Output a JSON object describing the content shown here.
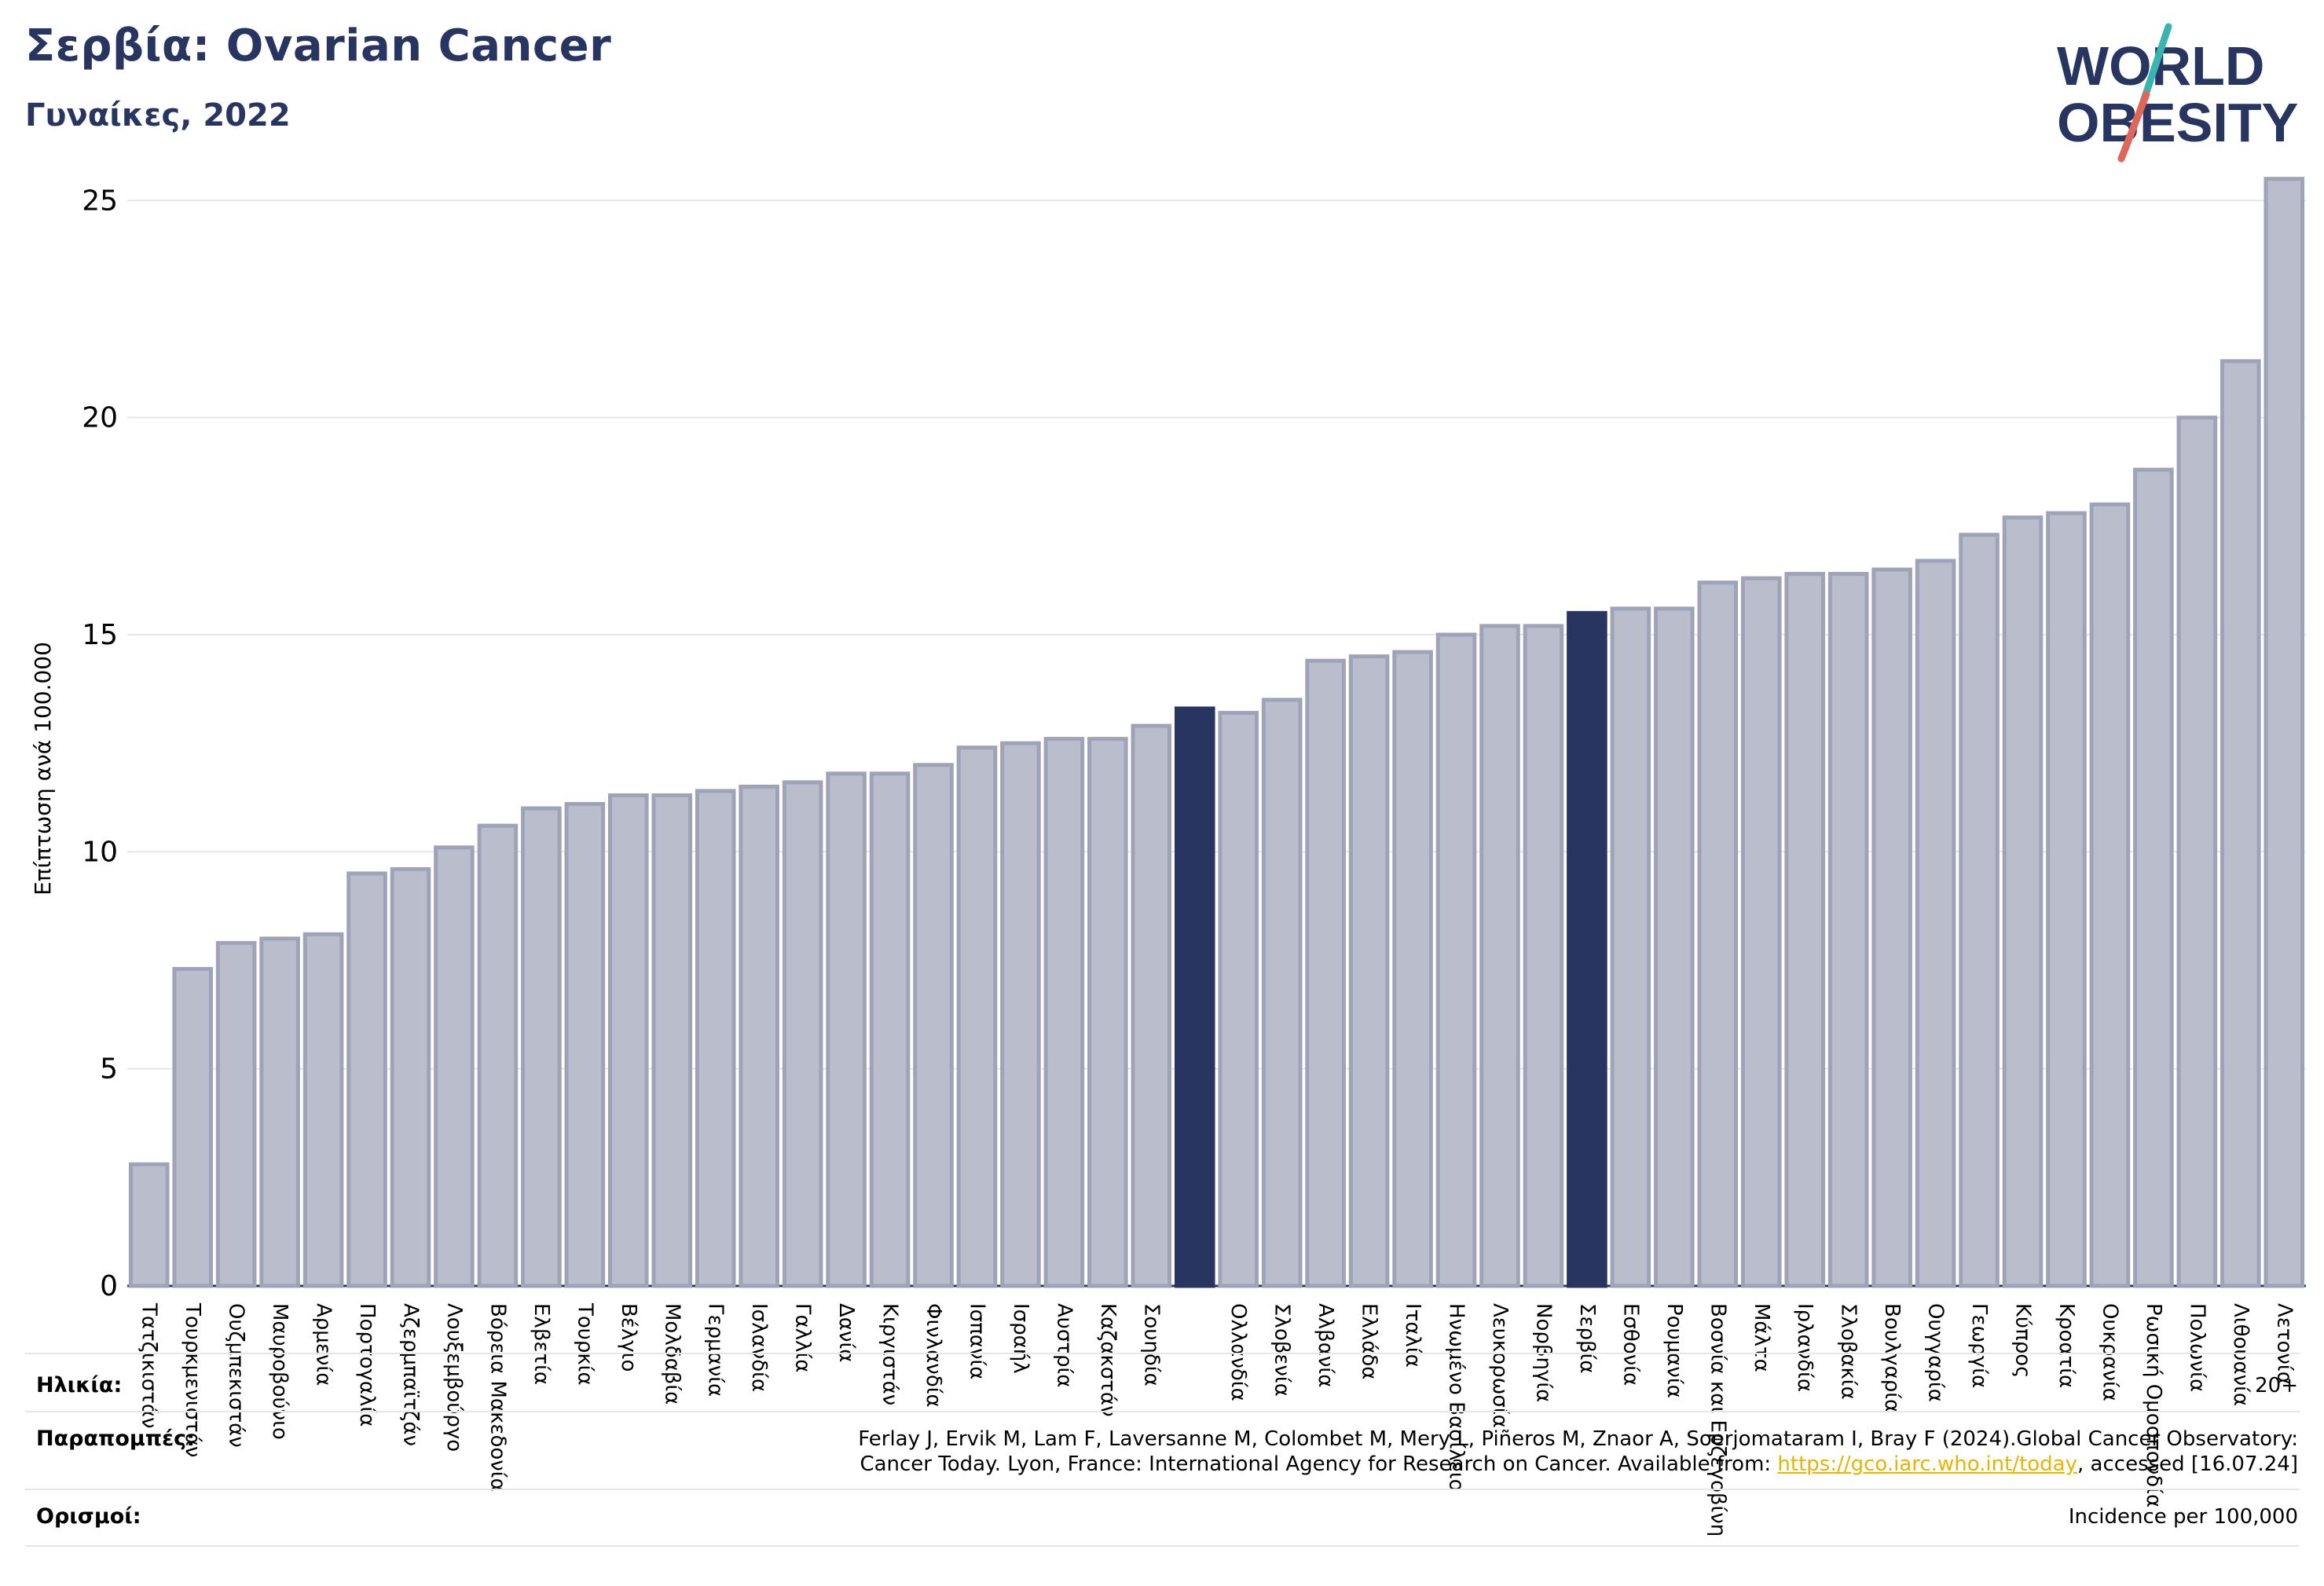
{
  "header": {
    "title": "Σερβία: Ovarian Cancer",
    "subtitle": "Γυναίκες, 2022"
  },
  "logo": {
    "line1": "WORLD",
    "line2": "OBESITY"
  },
  "colors": {
    "navy": "#283560",
    "bar": "#b9bdcc",
    "bar_edge": "#9ea3b8",
    "accent_teal": "#3ab4b0",
    "accent_red": "#e0665a",
    "link": "#e8b400"
  },
  "chart_data": {
    "type": "bar",
    "ylabel": "Επίπτωση ανά 100.000",
    "ylim": [
      0,
      26
    ],
    "yticks": [
      0,
      5,
      10,
      15,
      20,
      25
    ],
    "grid": true,
    "highlight": [
      "",
      "Σερβία"
    ],
    "categories": [
      "Τατζικιστάν",
      "Τουρκμενιστάν",
      "Ουζμπεκιστάν",
      "Μαυροβούνιο",
      "Αρμενία",
      "Πορτογαλία",
      "Αζερμπαϊτζάν",
      "Λουξεμβούργο",
      "Βόρεια Μακεδονία",
      "Ελβετία",
      "Τουρκία",
      "Βέλγιο",
      "Μολδαβία",
      "Γερμανία",
      "Ισλανδία",
      "Γαλλία",
      "Δανία",
      "Κιργιστάν",
      "Φινλανδία",
      "Ισπανία",
      "Ισραήλ",
      "Αυστρία",
      "Καζακστάν",
      "Σουηδία",
      "",
      "Ολλανδία",
      "Σλοβενία",
      "Αλβανία",
      "Ελλάδα",
      "Ιταλία",
      "Ηνωμένο Βασίλειο",
      "Λευκορωσία",
      "Νορβηγία",
      "Σερβία",
      "Εσθονία",
      "Ρουμανία",
      "Βοσνία και Ερζεγοβίνη",
      "Μάλτα",
      "Ιρλανδία",
      "Σλοβακία",
      "Βουλγαρία",
      "Ουγγαρία",
      "Γεωργία",
      "Κύπρος",
      "Κροατία",
      "Ουκρανία",
      "Ρωσική Ομοσπονδία",
      "Πολωνία",
      "Λιθουανία",
      "Λετονία"
    ],
    "values": [
      2.8,
      7.3,
      7.9,
      8.0,
      8.1,
      9.5,
      9.6,
      10.1,
      10.6,
      11.0,
      11.1,
      11.3,
      11.3,
      11.4,
      11.5,
      11.6,
      11.8,
      11.8,
      12.0,
      12.4,
      12.5,
      12.6,
      12.6,
      12.9,
      13.3,
      13.2,
      13.5,
      14.4,
      14.5,
      14.6,
      15.0,
      15.2,
      15.2,
      15.5,
      15.6,
      15.6,
      16.2,
      16.3,
      16.4,
      16.4,
      16.5,
      16.7,
      17.3,
      17.7,
      17.8,
      18.0,
      18.8,
      20.0,
      21.3,
      25.5
    ]
  },
  "footer": {
    "age_label": "Ηλικία:",
    "age_value": "20+",
    "ref_label": "Παραπομπές:",
    "ref_line1": "Ferlay J, Ervik M, Lam F, Laversanne M, Colombet M, Mery L, Piñeros M, Znaor A, Soerjomataram I, Bray F (2024).Global Cancer Observatory:",
    "ref_line2_pre": "Cancer Today. Lyon, France: International Agency for Research on Cancer. Available from: ",
    "ref_link": "https://gco.iarc.who.int/today",
    "ref_line2_post": ", accessed [16.07.24]",
    "def_label": "Ορισμοί:",
    "def_value": "Incidence per 100,000"
  }
}
